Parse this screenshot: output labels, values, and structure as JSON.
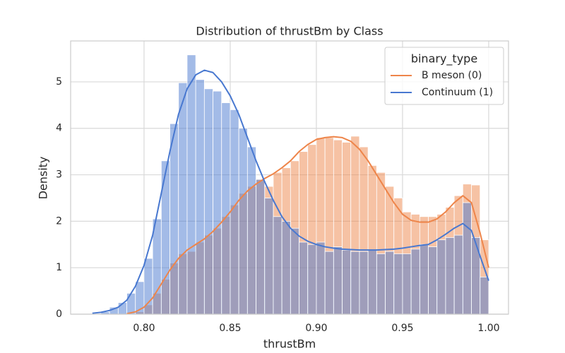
{
  "chart_data": {
    "type": "histogram",
    "title": "Distribution of thrustBm by Class",
    "xlabel": "thrustBm",
    "ylabel": "Density",
    "legend_title": "binary_type",
    "legend_loc": "upper right",
    "grid": true,
    "xlim": [
      0.7574,
      1.0115
    ],
    "ylim": [
      0,
      5.88
    ],
    "xticks": [
      {
        "value": 0.8,
        "label": "0.80"
      },
      {
        "value": 0.85,
        "label": "0.85"
      },
      {
        "value": 0.9,
        "label": "0.90"
      },
      {
        "value": 0.95,
        "label": "0.95"
      },
      {
        "value": 1.0,
        "label": "1.00"
      }
    ],
    "yticks": [
      0,
      1,
      2,
      3,
      4,
      5
    ],
    "bins": [
      0.77,
      0.775,
      0.78,
      0.785,
      0.79,
      0.795,
      0.8,
      0.805,
      0.81,
      0.815,
      0.82,
      0.825,
      0.83,
      0.835,
      0.84,
      0.845,
      0.85,
      0.855,
      0.86,
      0.865,
      0.87,
      0.875,
      0.88,
      0.885,
      0.89,
      0.895,
      0.9,
      0.905,
      0.91,
      0.915,
      0.92,
      0.925,
      0.93,
      0.935,
      0.94,
      0.945,
      0.95,
      0.955,
      0.96,
      0.965,
      0.97,
      0.975,
      0.98,
      0.985,
      0.99,
      0.995,
      1.0
    ],
    "series": [
      {
        "name": "B meson (0)",
        "color": "#ee854a",
        "values": [
          0,
          0,
          0,
          0,
          0,
          0.05,
          0.2,
          0.45,
          0.75,
          1.1,
          1.3,
          1.35,
          1.55,
          1.7,
          1.85,
          2.1,
          2.35,
          2.6,
          2.75,
          2.9,
          2.75,
          3.05,
          3.15,
          3.3,
          3.5,
          3.65,
          3.8,
          3.8,
          3.75,
          3.7,
          3.83,
          3.6,
          3.2,
          3.05,
          2.75,
          2.5,
          2.2,
          2.15,
          2.1,
          2.1,
          2.15,
          2.3,
          2.55,
          2.8,
          2.78,
          1.6
        ],
        "kde": [
          null,
          null,
          null,
          null,
          0.01,
          0.05,
          0.15,
          0.35,
          0.65,
          0.95,
          1.2,
          1.38,
          1.5,
          1.62,
          1.78,
          1.98,
          2.2,
          2.45,
          2.65,
          2.8,
          2.92,
          3.02,
          3.15,
          3.3,
          3.5,
          3.65,
          3.76,
          3.8,
          3.82,
          3.8,
          3.72,
          3.55,
          3.3,
          3.0,
          2.7,
          2.4,
          2.15,
          2.02,
          1.98,
          1.98,
          2.05,
          2.2,
          2.4,
          2.55,
          2.4,
          1.75,
          1.0
        ]
      },
      {
        "name": "Continuum (1)",
        "color": "#4878d0",
        "values": [
          0.01,
          0.05,
          0.15,
          0.25,
          0.45,
          0.7,
          1.2,
          2.05,
          3.3,
          4.1,
          4.98,
          5.58,
          5.05,
          4.85,
          4.8,
          4.55,
          4.4,
          4.0,
          3.6,
          2.9,
          2.5,
          2.1,
          2.0,
          1.85,
          1.55,
          1.5,
          1.55,
          1.35,
          1.45,
          1.38,
          1.35,
          1.35,
          1.38,
          1.3,
          1.35,
          1.3,
          1.3,
          1.4,
          1.5,
          1.45,
          1.6,
          1.65,
          1.7,
          2.4,
          1.65,
          0.8
        ],
        "kde": [
          0.02,
          0.04,
          0.08,
          0.15,
          0.3,
          0.6,
          1.05,
          1.7,
          2.6,
          3.5,
          4.3,
          4.85,
          5.15,
          5.25,
          5.2,
          5.0,
          4.7,
          4.3,
          3.8,
          3.3,
          2.85,
          2.45,
          2.1,
          1.85,
          1.68,
          1.57,
          1.5,
          1.45,
          1.42,
          1.4,
          1.39,
          1.38,
          1.38,
          1.38,
          1.39,
          1.4,
          1.42,
          1.45,
          1.48,
          1.5,
          1.6,
          1.72,
          1.85,
          1.95,
          1.8,
          1.25,
          0.72
        ]
      }
    ]
  }
}
